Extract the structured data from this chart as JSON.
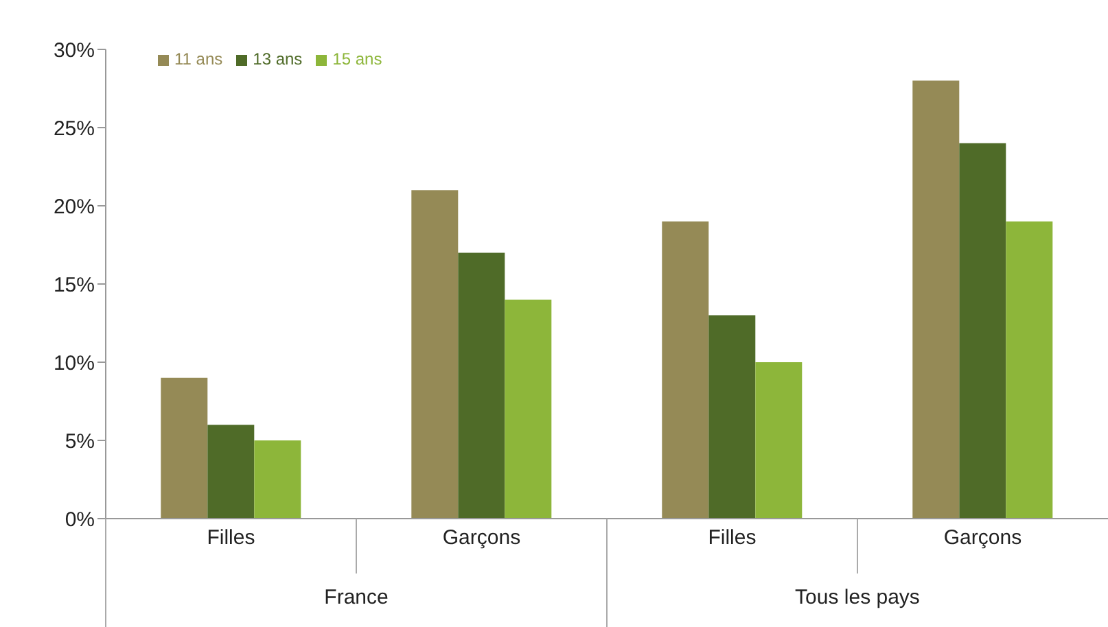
{
  "chart_data": {
    "type": "bar",
    "categories": [
      "Filles",
      "Garçons",
      "Filles",
      "Garçons"
    ],
    "series": [
      {
        "name": "11 ans",
        "color": "#958a56",
        "values": [
          9,
          21,
          19,
          28
        ]
      },
      {
        "name": "13 ans",
        "color": "#4f6b28",
        "values": [
          6,
          17,
          13,
          24
        ]
      },
      {
        "name": "15 ans",
        "color": "#8db63a",
        "values": [
          5,
          14,
          10,
          19
        ]
      }
    ],
    "ylim": [
      0,
      30
    ],
    "yticks": [
      {
        "value": 0,
        "label": "0%"
      },
      {
        "value": 5,
        "label": "5%"
      },
      {
        "value": 10,
        "label": "10%"
      },
      {
        "value": 15,
        "label": "15%"
      },
      {
        "value": 20,
        "label": "20%"
      },
      {
        "value": 25,
        "label": "25%"
      },
      {
        "value": 30,
        "label": "30%"
      }
    ],
    "legend": "top left",
    "annotations": [
      "France",
      "Tous les pays"
    ]
  }
}
